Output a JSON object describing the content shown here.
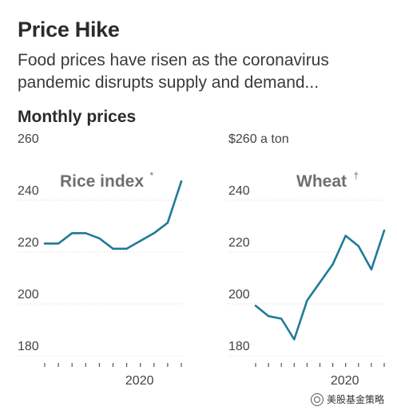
{
  "header": {
    "title": "Price Hike",
    "subtitle": "Food prices have risen as the coronavirus pandemic disrupts supply and demand...",
    "section": "Monthly prices"
  },
  "watermark": {
    "text": "美股基金策略",
    "icon": "wechat-icon"
  },
  "colors": {
    "line": "#1f7a99",
    "title_gray": "#6f6f6f"
  },
  "chart_data": [
    {
      "type": "line",
      "title": "Rice index",
      "title_marker": "*",
      "ylim": [
        180,
        260
      ],
      "yticks": [
        180,
        200,
        220,
        240,
        260
      ],
      "ytick_labels": [
        "180",
        "200",
        "220",
        "240",
        "260"
      ],
      "top_label": "260",
      "x_label": "2020",
      "n_months": 11,
      "year_tick_index": 7,
      "grid": true,
      "values": [
        223,
        223,
        227,
        227,
        225,
        221,
        221,
        224,
        227,
        231,
        247
      ]
    },
    {
      "type": "line",
      "title": "Wheat",
      "title_marker": "†",
      "ylim": [
        180,
        260
      ],
      "yticks": [
        180,
        200,
        220,
        240,
        260
      ],
      "ytick_labels": [
        "180",
        "200",
        "220",
        "240",
        "$260 a ton"
      ],
      "top_label": "$260 a ton",
      "x_label": "2020",
      "n_months": 11,
      "year_tick_index": 7,
      "grid": true,
      "values": [
        199,
        195,
        194,
        186,
        201,
        208,
        215,
        226,
        222,
        213,
        228
      ]
    }
  ]
}
